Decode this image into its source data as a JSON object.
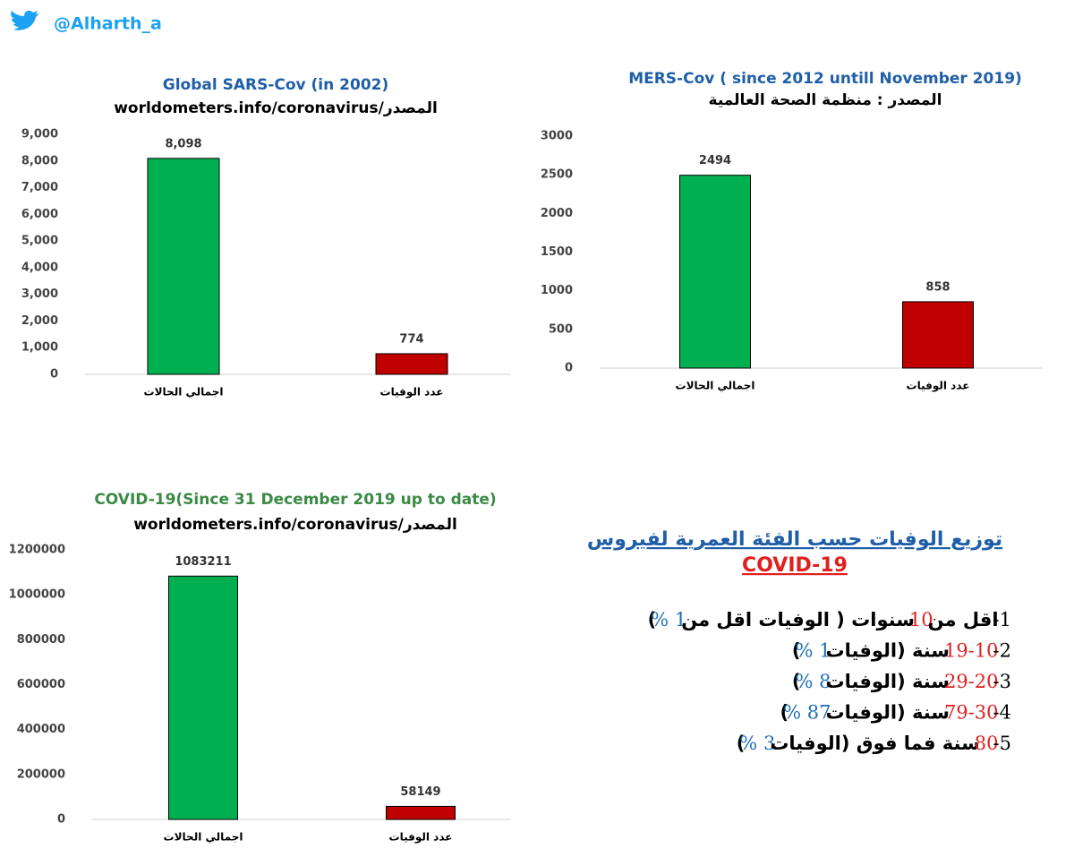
{
  "handle": "@Alharth_a",
  "chart_data": [
    {
      "type": "bar",
      "title": "Global SARS-Cov (in 2002)",
      "title_color": "#1f5fa8",
      "subtitle": "worldometers.info/coronavirus/المصدر",
      "categories": [
        "اجمالي الحالات",
        "عدد الوفيات"
      ],
      "values": [
        8098,
        774
      ],
      "value_labels": [
        "8,098",
        "774"
      ],
      "colors": [
        "#00b050",
        "#c00000"
      ],
      "ylim": [
        0,
        9000
      ],
      "yticks": [
        0,
        {
          "value": 1000,
          "label": "1,000"
        },
        {
          "value": 2000,
          "label": "2,000"
        },
        {
          "value": 3000,
          "label": "3,000"
        },
        {
          "value": 4000,
          "label": "4,000"
        },
        {
          "value": 5000,
          "label": "5,000"
        },
        {
          "value": 6000,
          "label": "6,000"
        },
        {
          "value": 7000,
          "label": "7,000"
        },
        {
          "value": 8000,
          "label": "8,000"
        },
        {
          "value": 9000,
          "label": "9,000"
        }
      ]
    },
    {
      "type": "bar",
      "title": "MERS-Cov ( since 2012 untill November 2019)",
      "title_color": "#1f5fa8",
      "subtitle": "المصدر : منظمة الصحة العالمية",
      "categories": [
        "اجمالي الحالات",
        "عدد الوفيات"
      ],
      "values": [
        2494,
        858
      ],
      "colors": [
        "#00b050",
        "#c00000"
      ],
      "ylim": [
        0,
        3000
      ],
      "yticks": [
        0,
        500,
        1000,
        1500,
        2000,
        2500,
        3000
      ]
    },
    {
      "type": "bar",
      "title": "COVID-19(Since 31 December 2019 up to date)",
      "title_color": "#3a8a44",
      "subtitle": "worldometers.info/coronavirus/المصدر",
      "categories": [
        "اجمالي الحالات",
        "عدد الوفيات"
      ],
      "values": [
        1083211,
        58149
      ],
      "colors": [
        "#00b050",
        "#c00000"
      ],
      "ylim": [
        0,
        1200000
      ],
      "yticks": [
        0,
        200000,
        400000,
        600000,
        800000,
        1000000,
        1200000
      ]
    }
  ],
  "age_panel": {
    "title": "توزيع الوفيات حسب الفئة العمرية لفيروس",
    "subtitle": "COVID-19",
    "items": [
      [
        {
          "text": "1-",
          "color": "#000000"
        },
        {
          "text": "اقل من",
          "color": "#000000"
        },
        {
          "text": "10",
          "color": "#e02020"
        },
        {
          "text": "سنوات ( الوفيات اقل من",
          "color": "#000000"
        },
        {
          "text": "1 %",
          "color": "#1f6fb8"
        },
        {
          "text": ")",
          "color": "#000000"
        }
      ],
      [
        {
          "text": "2-",
          "color": "#000000"
        },
        {
          "text": "19-10",
          "color": "#e02020"
        },
        {
          "text": "سنة (الوفيات",
          "color": "#000000"
        },
        {
          "text": "1 %",
          "color": "#1f6fb8"
        },
        {
          "text": ")",
          "color": "#000000"
        }
      ],
      [
        {
          "text": "3-",
          "color": "#000000"
        },
        {
          "text": "29-20",
          "color": "#e02020"
        },
        {
          "text": "سنة (الوفيات",
          "color": "#000000"
        },
        {
          "text": "8 %",
          "color": "#1f6fb8"
        },
        {
          "text": ")",
          "color": "#000000"
        }
      ],
      [
        {
          "text": "4-",
          "color": "#000000"
        },
        {
          "text": "79-30",
          "color": "#e02020"
        },
        {
          "text": "سنة (الوفيات",
          "color": "#000000"
        },
        {
          "text": "87 %",
          "color": "#1f6fb8"
        },
        {
          "text": ")",
          "color": "#000000"
        }
      ],
      [
        {
          "text": "5-",
          "color": "#000000"
        },
        {
          "text": "80",
          "color": "#e02020"
        },
        {
          "text": "سنة فما فوق (الوفيات",
          "color": "#000000"
        },
        {
          "text": "3 %",
          "color": "#1f6fb8"
        },
        {
          "text": ")",
          "color": "#000000"
        }
      ]
    ]
  }
}
